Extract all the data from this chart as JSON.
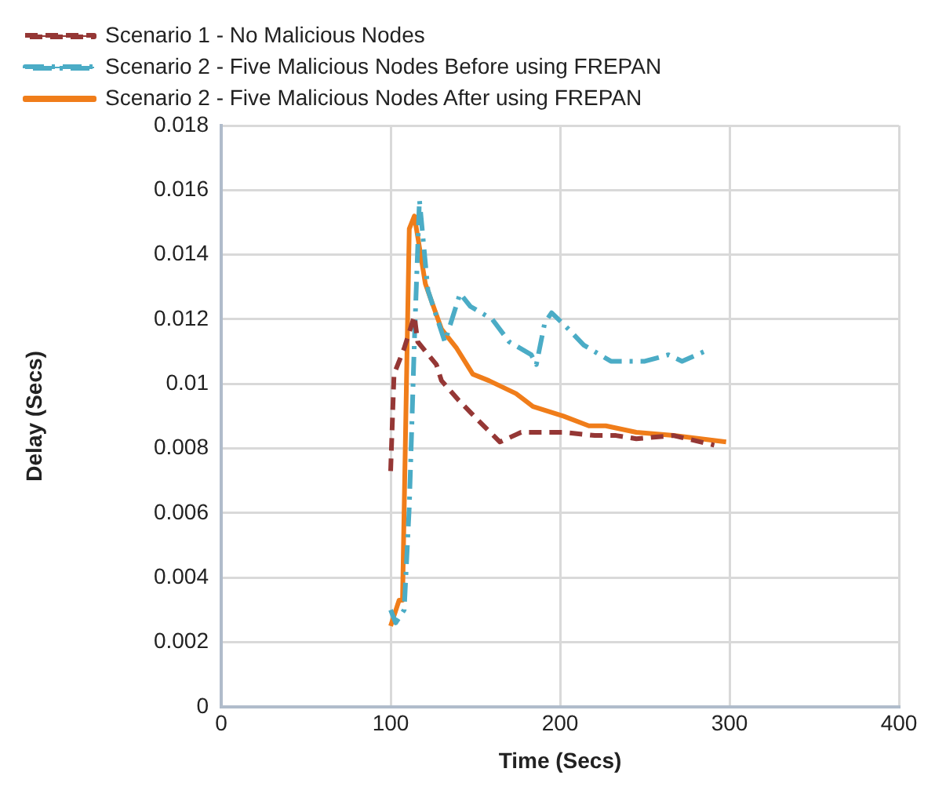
{
  "chart_data": {
    "type": "line",
    "xlabel": "Time (Secs)",
    "ylabel": "Delay (Secs)",
    "xlim": [
      0,
      400
    ],
    "xticks": [
      0,
      100,
      200,
      300,
      400
    ],
    "ylim": [
      0,
      0.018
    ],
    "yticks": [
      0,
      0.002,
      0.004,
      0.006,
      0.008,
      0.01,
      0.012,
      0.014,
      0.016,
      0.018
    ],
    "grid": true,
    "legend": "top",
    "marker": "none",
    "series": [
      {
        "name": "Scenario 1 - No Malicious Nodes",
        "color": "#953735",
        "line_style": "dashed",
        "x": [
          100,
          102,
          108,
          114,
          116,
          127,
          130,
          140,
          153,
          164.5,
          177,
          189,
          202,
          220.5,
          233,
          245,
          267,
          291
        ],
        "values": [
          0.0073,
          0.0103,
          0.0111,
          0.0121,
          0.0113,
          0.0106,
          0.0101,
          0.0095,
          0.0088,
          0.0082,
          0.0085,
          0.0085,
          0.0085,
          0.0084,
          0.0084,
          0.0083,
          0.0084,
          0.0081
        ]
      },
      {
        "name": "Scenario 2 - Five Malicious Nodes Before using FREPAN",
        "color": "#4bacc6",
        "line_style": "dashdot",
        "x": [
          100,
          103,
          108,
          111,
          112.5,
          114,
          117,
          122,
          132,
          141,
          147,
          160,
          170,
          183,
          186,
          191,
          195,
          203,
          214,
          230,
          237,
          250,
          264,
          272,
          285
        ],
        "values": [
          0.003,
          0.0026,
          0.003,
          0.0062,
          0.0087,
          0.0113,
          0.0157,
          0.0129,
          0.0113,
          0.0128,
          0.0124,
          0.012,
          0.0113,
          0.0109,
          0.0106,
          0.0119,
          0.0122,
          0.0118,
          0.0112,
          0.0107,
          0.0107,
          0.0107,
          0.0109,
          0.0107,
          0.011
        ]
      },
      {
        "name": "Scenario 2 - Five Malicious Nodes After using FREPAN",
        "color": "#f07d1a",
        "line_style": "solid",
        "x": [
          100,
          105,
          107,
          111,
          114,
          120.5,
          130,
          139,
          148.5,
          158,
          174,
          184,
          202,
          217,
          227,
          245,
          267,
          298
        ],
        "values": [
          0.0025,
          0.0033,
          0.0033,
          0.0148,
          0.0152,
          0.0131,
          0.0117,
          0.0111,
          0.0103,
          0.0101,
          0.0097,
          0.0093,
          0.009,
          0.0087,
          0.0087,
          0.0085,
          0.0084,
          0.0082
        ]
      }
    ]
  }
}
